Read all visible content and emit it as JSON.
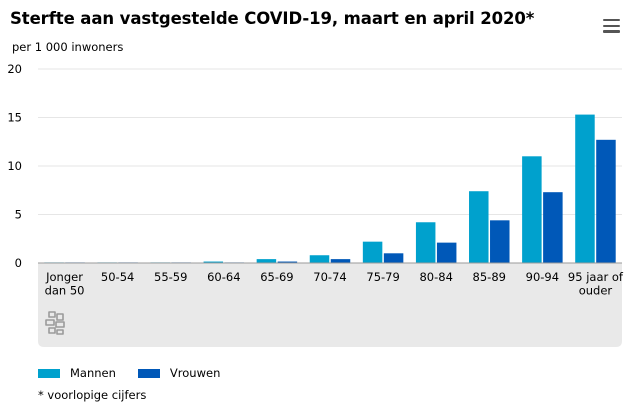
{
  "title": "Sterfte aan vastgestelde COVID-19, maart en april 2020*",
  "subtitle": "per 1 000 inwoners",
  "menu_icon": "hamburger-menu-icon",
  "logo_icon": "cbs-logo-icon",
  "footnote": "* voorlopige cijfers",
  "colors": {
    "mannen": "#00a1cd",
    "vrouwen": "#0058b8",
    "grid": "#e6e6e6",
    "panel": "#e9e9e9"
  },
  "chart_data": {
    "type": "bar",
    "title": "Sterfte aan vastgestelde COVID-19, maart en april 2020*",
    "subtitle": "per 1 000 inwoners",
    "xlabel": "",
    "ylabel": "",
    "ylim": [
      0,
      20
    ],
    "yticks": [
      0,
      5,
      10,
      15,
      20
    ],
    "grid": true,
    "legend_position": "bottom-left",
    "categories": [
      [
        "Jonger",
        "dan 50"
      ],
      [
        "50-54"
      ],
      [
        "55-59"
      ],
      [
        "60-64"
      ],
      [
        "65-69"
      ],
      [
        "70-74"
      ],
      [
        "75-79"
      ],
      [
        "80-84"
      ],
      [
        "85-89"
      ],
      [
        "90-94"
      ],
      [
        "95 jaar of",
        "ouder"
      ]
    ],
    "series": [
      {
        "name": "Mannen",
        "color": "#00a1cd",
        "values": [
          0.01,
          0.03,
          0.06,
          0.15,
          0.4,
          0.8,
          2.2,
          4.2,
          7.4,
          11.0,
          15.3
        ]
      },
      {
        "name": "Vrouwen",
        "color": "#0058b8",
        "values": [
          0.0,
          0.01,
          0.03,
          0.06,
          0.15,
          0.4,
          1.0,
          2.1,
          4.4,
          7.3,
          12.7
        ]
      }
    ]
  }
}
